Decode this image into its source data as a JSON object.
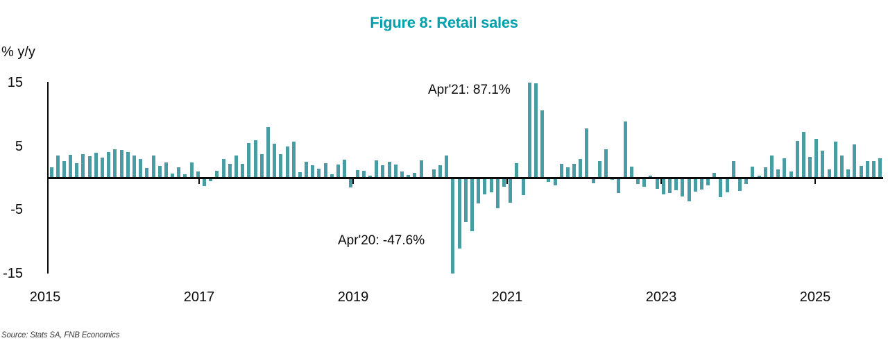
{
  "title": "Figure 8: Retail sales",
  "y_axis_label": "% y/y",
  "source": "Source: Stats SA, FNB Economics",
  "annotations": {
    "apr21": "Apr'21: 87.1%",
    "apr20": "Apr'20: -47.6%"
  },
  "colors": {
    "bar": "#4A9CA4",
    "title": "#00A1AD",
    "axis": "#0a0a0a"
  },
  "chart_data": {
    "type": "bar",
    "title": "Figure 8: Retail sales",
    "xlabel": "",
    "ylabel": "% y/y",
    "unit": "percent year-on-year",
    "frequency": "monthly",
    "start": "2015-01",
    "end": "2025-11",
    "ylim": [
      -15,
      15
    ],
    "yticks": [
      15,
      5,
      -5,
      -15
    ],
    "xticks": [
      2015,
      2017,
      2019,
      2021,
      2023,
      2025
    ],
    "grid": false,
    "legend": "none",
    "clipped_points": [
      {
        "month": "2020-04",
        "actual": -47.6,
        "displayed": -15,
        "label": "Apr'20: -47.6%"
      },
      {
        "month": "2021-04",
        "actual": 87.1,
        "displayed": 15,
        "label": "Apr'21: 87.1%"
      }
    ],
    "series": [
      {
        "year": 2015,
        "values": [
          1.7,
          3.6,
          2.7,
          3.7,
          2.3,
          3.8,
          3.4,
          4.0,
          3.2,
          4.1,
          4.5,
          4.4
        ]
      },
      {
        "year": 2016,
        "values": [
          4.1,
          3.5,
          3.0,
          1.6,
          3.5,
          1.9,
          2.5,
          0.7,
          1.7,
          0.6,
          2.5,
          1.0
        ]
      },
      {
        "year": 2017,
        "values": [
          -1.3,
          -0.5,
          1.1,
          3.0,
          2.2,
          3.5,
          2.2,
          5.5,
          6.0,
          3.8,
          8.0,
          5.4
        ]
      },
      {
        "year": 2018,
        "values": [
          3.8,
          5.0,
          5.7,
          0.9,
          2.6,
          2.0,
          1.5,
          2.3,
          0.6,
          2.1,
          2.9,
          -1.5
        ]
      },
      {
        "year": 2019,
        "values": [
          1.3,
          1.2,
          0.4,
          2.8,
          2.0,
          2.6,
          2.1,
          1.0,
          0.5,
          0.8,
          2.8,
          0.1
        ]
      },
      {
        "year": 2020,
        "values": [
          1.4,
          2.0,
          3.5,
          -15.0,
          -11.1,
          -6.9,
          -8.4,
          -4.0,
          -2.6,
          -2.2,
          -4.7,
          -1.4
        ]
      },
      {
        "year": 2021,
        "values": [
          -3.9,
          2.3,
          -2.7,
          15.0,
          14.9,
          10.7,
          -0.6,
          -1.1,
          2.2,
          1.7,
          2.2,
          3.0
        ]
      },
      {
        "year": 2022,
        "values": [
          7.8,
          -0.8,
          2.7,
          4.5,
          -0.3,
          -2.4,
          8.9,
          1.8,
          -0.9,
          -1.4,
          0.4,
          -1.7
        ]
      },
      {
        "year": 2023,
        "values": [
          -2.6,
          -2.3,
          -1.9,
          -2.9,
          -3.7,
          -2.1,
          -1.8,
          -1.2,
          0.8,
          -3.0,
          -2.2,
          2.7
        ]
      },
      {
        "year": 2024,
        "values": [
          -2.0,
          -0.9,
          1.8,
          0.4,
          1.7,
          3.5,
          1.4,
          3.1,
          1.0,
          5.8,
          7.3,
          3.3
        ]
      },
      {
        "year": 2025,
        "values": [
          6.2,
          4.3,
          1.4,
          5.7,
          3.5,
          1.4,
          5.3,
          1.9,
          2.7,
          2.7,
          3.1
        ]
      }
    ]
  }
}
